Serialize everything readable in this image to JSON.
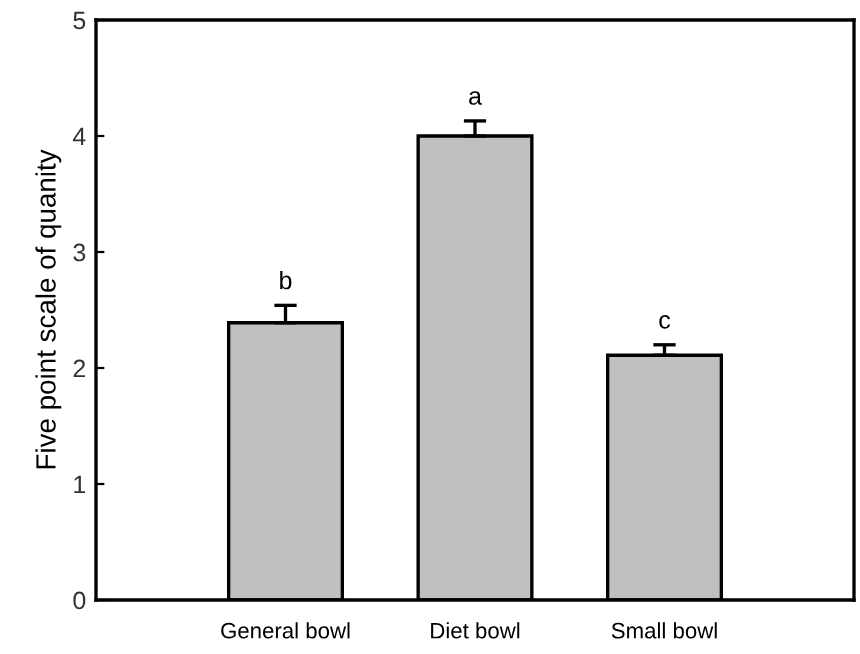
{
  "chart_data": {
    "type": "bar",
    "ylabel": "Five point scale of quanity",
    "categories": [
      "General bowl",
      "Diet bowl",
      "Small bowl"
    ],
    "values": [
      2.39,
      4.0,
      2.11
    ],
    "errors": [
      0.15,
      0.13,
      0.09
    ],
    "color": "#c0c0c0",
    "ylim": [
      0,
      5
    ],
    "yticks": [
      0,
      1,
      2,
      3,
      4,
      5
    ],
    "grid": false,
    "legend": false,
    "annotations": [
      {
        "text": "b",
        "x": "General bowl",
        "y": 2.54
      },
      {
        "text": "a",
        "x": "Diet bowl",
        "y": 4.13
      },
      {
        "text": "c",
        "x": "Small bowl",
        "y": 2.2
      }
    ]
  }
}
